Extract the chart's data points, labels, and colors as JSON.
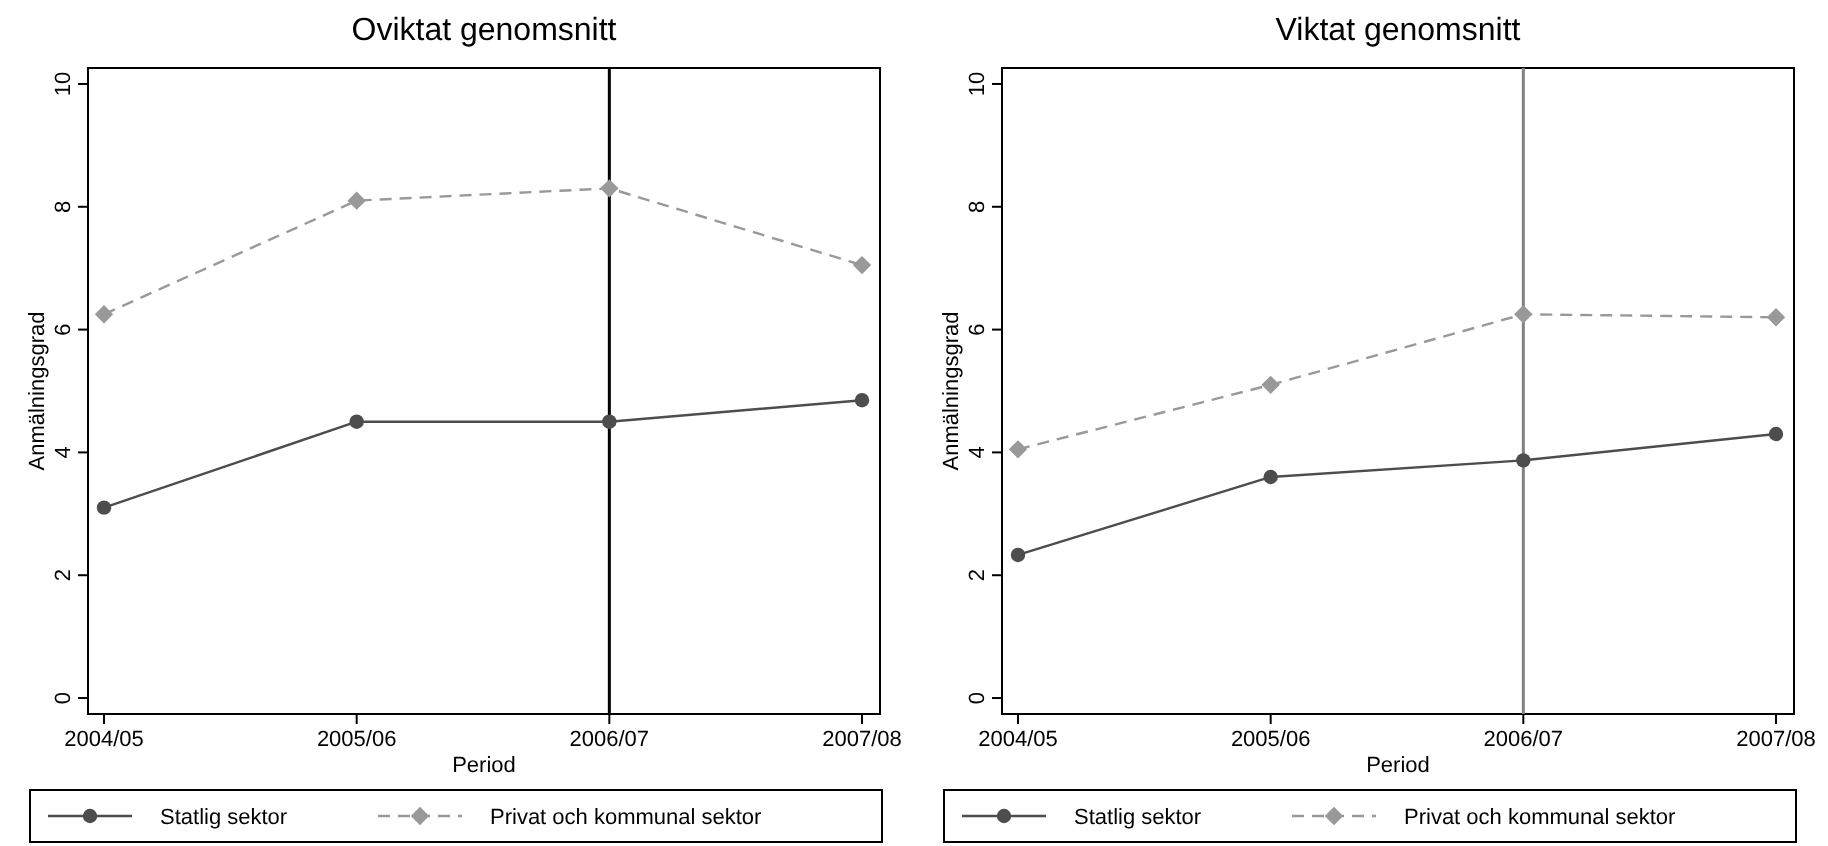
{
  "chart_data": [
    {
      "type": "line",
      "title": "Oviktat genomsnitt",
      "xlabel": "Period",
      "ylabel": "Anmälningsgrad",
      "categories": [
        "2004/05",
        "2005/06",
        "2006/07",
        "2007/08"
      ],
      "ylim": [
        -0.26,
        10.26
      ],
      "yticks": [
        0,
        2,
        4,
        6,
        8,
        10
      ],
      "grid": false,
      "legend": "bottom",
      "series": [
        {
          "name": "Statlig sektor",
          "color": "#4d4d4d",
          "values": [
            3.1,
            4.5,
            4.5,
            4.85
          ],
          "marker": "circle",
          "line_style": "solid"
        },
        {
          "name": "Privat och kommunal sektor",
          "color": "#999999",
          "values": [
            6.25,
            8.1,
            8.3,
            7.05
          ],
          "marker": "diamond",
          "line_style": "dashed"
        }
      ],
      "ref_lines": [
        {
          "axis": "x",
          "value": "2006/07",
          "color": "#000000"
        }
      ]
    },
    {
      "type": "line",
      "title": "Viktat genomsnitt",
      "xlabel": "Period",
      "ylabel": "Anmälningsgrad",
      "categories": [
        "2004/05",
        "2005/06",
        "2006/07",
        "2007/08"
      ],
      "ylim": [
        -0.26,
        10.26
      ],
      "yticks": [
        0,
        2,
        4,
        6,
        8,
        10
      ],
      "grid": false,
      "legend": "bottom",
      "series": [
        {
          "name": "Statlig sektor",
          "color": "#4d4d4d",
          "values": [
            2.33,
            3.6,
            3.87,
            4.3
          ],
          "marker": "circle",
          "line_style": "solid"
        },
        {
          "name": "Privat och kommunal sektor",
          "color": "#999999",
          "values": [
            4.05,
            5.1,
            6.25,
            6.2
          ],
          "marker": "diamond",
          "line_style": "dashed"
        }
      ],
      "ref_lines": [
        {
          "axis": "x",
          "value": "2006/07",
          "color": "#808080"
        }
      ]
    }
  ]
}
